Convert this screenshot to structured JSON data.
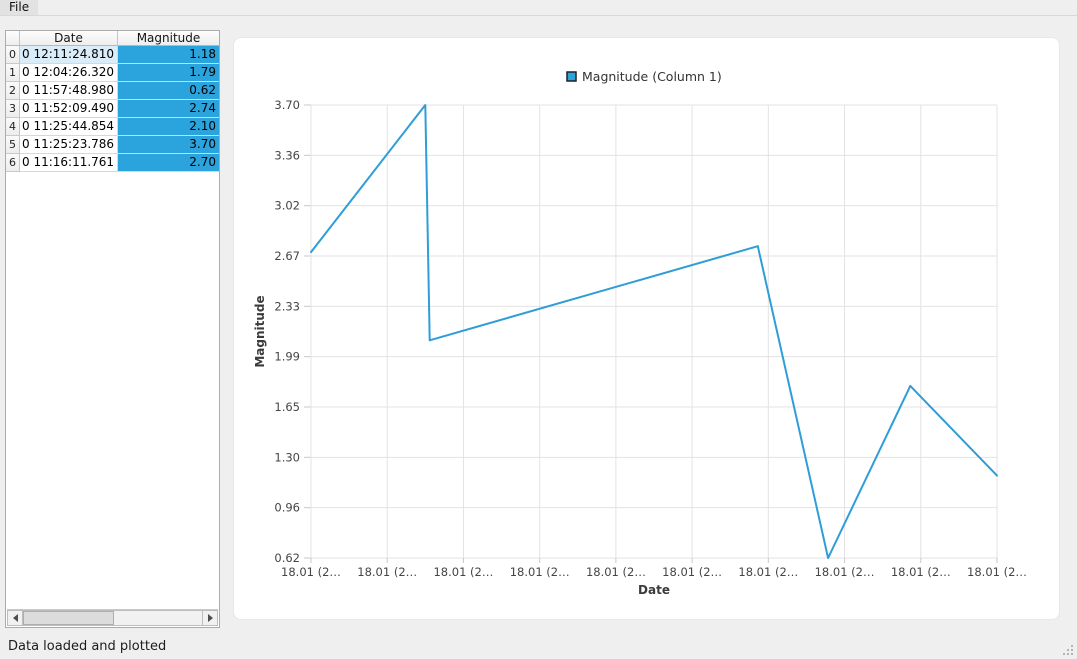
{
  "menu": {
    "items": [
      {
        "label": "File"
      }
    ]
  },
  "table": {
    "columns": [
      {
        "label": "Date"
      },
      {
        "label": "Magnitude"
      }
    ],
    "rows": [
      {
        "n": "0",
        "date": "0 12:11:24.810",
        "magnitude": "1.18"
      },
      {
        "n": "1",
        "date": "0 12:04:26.320",
        "magnitude": "1.79"
      },
      {
        "n": "2",
        "date": "0 11:57:48.980",
        "magnitude": "0.62"
      },
      {
        "n": "3",
        "date": "0 11:52:09.490",
        "magnitude": "2.74"
      },
      {
        "n": "4",
        "date": "0 11:25:44.854",
        "magnitude": "2.10"
      },
      {
        "n": "5",
        "date": "0 11:25:23.786",
        "magnitude": "3.70"
      },
      {
        "n": "6",
        "date": "0 11:16:11.761",
        "magnitude": "2.70"
      }
    ],
    "selection": {
      "selected_column": "Magnitude",
      "current_cell_row": 0,
      "current_cell_column": "Date",
      "selection_color": "#2BA3DC",
      "current_cell_color": "#d9ecf8"
    }
  },
  "chart_data": {
    "type": "line",
    "title": "",
    "xlabel": "Date",
    "ylabel": "Magnitude",
    "grid": true,
    "legend_position": "top-center",
    "legend": [
      {
        "label": "Magnitude (Column 1)",
        "color": "#2BA3DC"
      }
    ],
    "ylim": [
      0.62,
      3.7
    ],
    "y_ticks": [
      "3.70",
      "3.36",
      "3.02",
      "2.67",
      "2.33",
      "1.99",
      "1.65",
      "1.30",
      "0.96",
      "0.62"
    ],
    "x_tick_labels": [
      "18.01 (2…",
      "18.01 (2…",
      "18.01 (2…",
      "18.01 (2…",
      "18.01 (2…",
      "18.01 (2…",
      "18.01 (2…",
      "18.01 (2…",
      "18.01 (2…",
      "18.01 (2…"
    ],
    "series": [
      {
        "name": "Magnitude (Column 1)",
        "color": "#2E9DD8",
        "points": [
          {
            "time": "11:16:11.761",
            "value": 2.7
          },
          {
            "time": "11:25:23.786",
            "value": 3.7
          },
          {
            "time": "11:25:44.854",
            "value": 2.1
          },
          {
            "time": "11:52:09.490",
            "value": 2.74
          },
          {
            "time": "11:57:48.980",
            "value": 0.62
          },
          {
            "time": "12:04:26.320",
            "value": 1.79
          },
          {
            "time": "12:11:24.810",
            "value": 1.18
          }
        ]
      }
    ]
  },
  "status_bar": {
    "text": "Data loaded and plotted"
  },
  "colors": {
    "window_background": "#efefef",
    "panel_background": "#ffffff",
    "selection_blue": "#2BA3DC",
    "chart_line": "#2E9DD8",
    "gridline": "#e3e3e3",
    "tick_text": "#454545",
    "axis_title_text": "#3b3b3b"
  }
}
